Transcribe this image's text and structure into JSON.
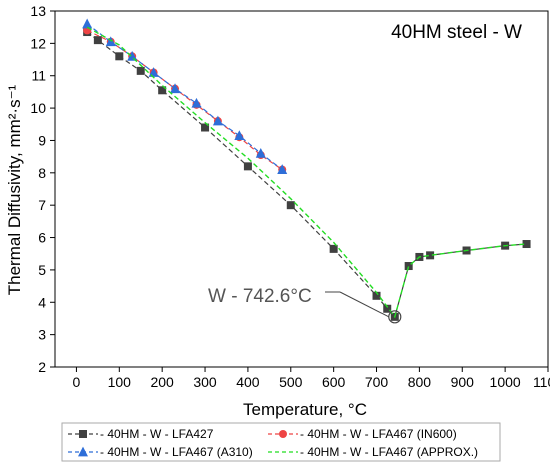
{
  "chart_data": {
    "type": "line",
    "title": "40HM steel - W",
    "xlabel": "Temperature, °C",
    "ylabel": "Thermal Diffusivity, mm²·s⁻¹",
    "xlim": [
      -50,
      1100
    ],
    "ylim": [
      2,
      13
    ],
    "xticks": [
      0,
      100,
      200,
      300,
      400,
      500,
      600,
      700,
      800,
      900,
      1000,
      1100
    ],
    "yticks": [
      2,
      3,
      4,
      5,
      6,
      7,
      8,
      9,
      10,
      11,
      12,
      13
    ],
    "grid": false,
    "legend_position": "bottom",
    "annotation": {
      "text": "W - 742.6°C",
      "x": 742.6,
      "y": 3.55
    },
    "series": [
      {
        "name": "- 40HM  - W - LFA427",
        "color": "#404040",
        "marker": "square",
        "line": "dash",
        "x": [
          25,
          50,
          100,
          150,
          200,
          300,
          400,
          500,
          600,
          700,
          725,
          742.6,
          775,
          800,
          825,
          910,
          1000,
          1050
        ],
        "y": [
          12.35,
          12.1,
          11.6,
          11.15,
          10.55,
          9.4,
          8.2,
          7.0,
          5.65,
          4.2,
          3.8,
          3.55,
          5.12,
          5.4,
          5.45,
          5.6,
          5.75,
          5.8
        ]
      },
      {
        "name": "- 40HM  - W - LFA467 (IN600)",
        "color": "#ee4444",
        "marker": "circle",
        "line": "dash",
        "x": [
          25,
          80,
          130,
          180,
          230,
          280,
          330,
          380,
          430,
          480
        ],
        "y": [
          12.4,
          12.05,
          11.6,
          11.1,
          10.6,
          10.1,
          9.6,
          9.1,
          8.55,
          8.1
        ]
      },
      {
        "name": "- 40HM  - W - LFA467 (A310)",
        "color": "#2e6ed8",
        "marker": "triangle",
        "line": "dash",
        "x": [
          25,
          80,
          130,
          180,
          230,
          280,
          330,
          380,
          430,
          480
        ],
        "y": [
          12.6,
          12.05,
          11.6,
          11.1,
          10.6,
          10.15,
          9.6,
          9.15,
          8.6,
          8.1
        ]
      },
      {
        "name": "- 40HM  - W - LFA467 (APPROX.)",
        "color": "#22dd22",
        "marker": "none",
        "line": "dash",
        "x": [
          25,
          100,
          200,
          300,
          400,
          500,
          600,
          700,
          742.6,
          775,
          800,
          825,
          910,
          1000,
          1050
        ],
        "y": [
          12.5,
          11.95,
          10.7,
          9.55,
          8.45,
          7.2,
          5.85,
          4.3,
          3.55,
          5.12,
          5.4,
          5.45,
          5.6,
          5.75,
          5.8
        ]
      }
    ]
  }
}
